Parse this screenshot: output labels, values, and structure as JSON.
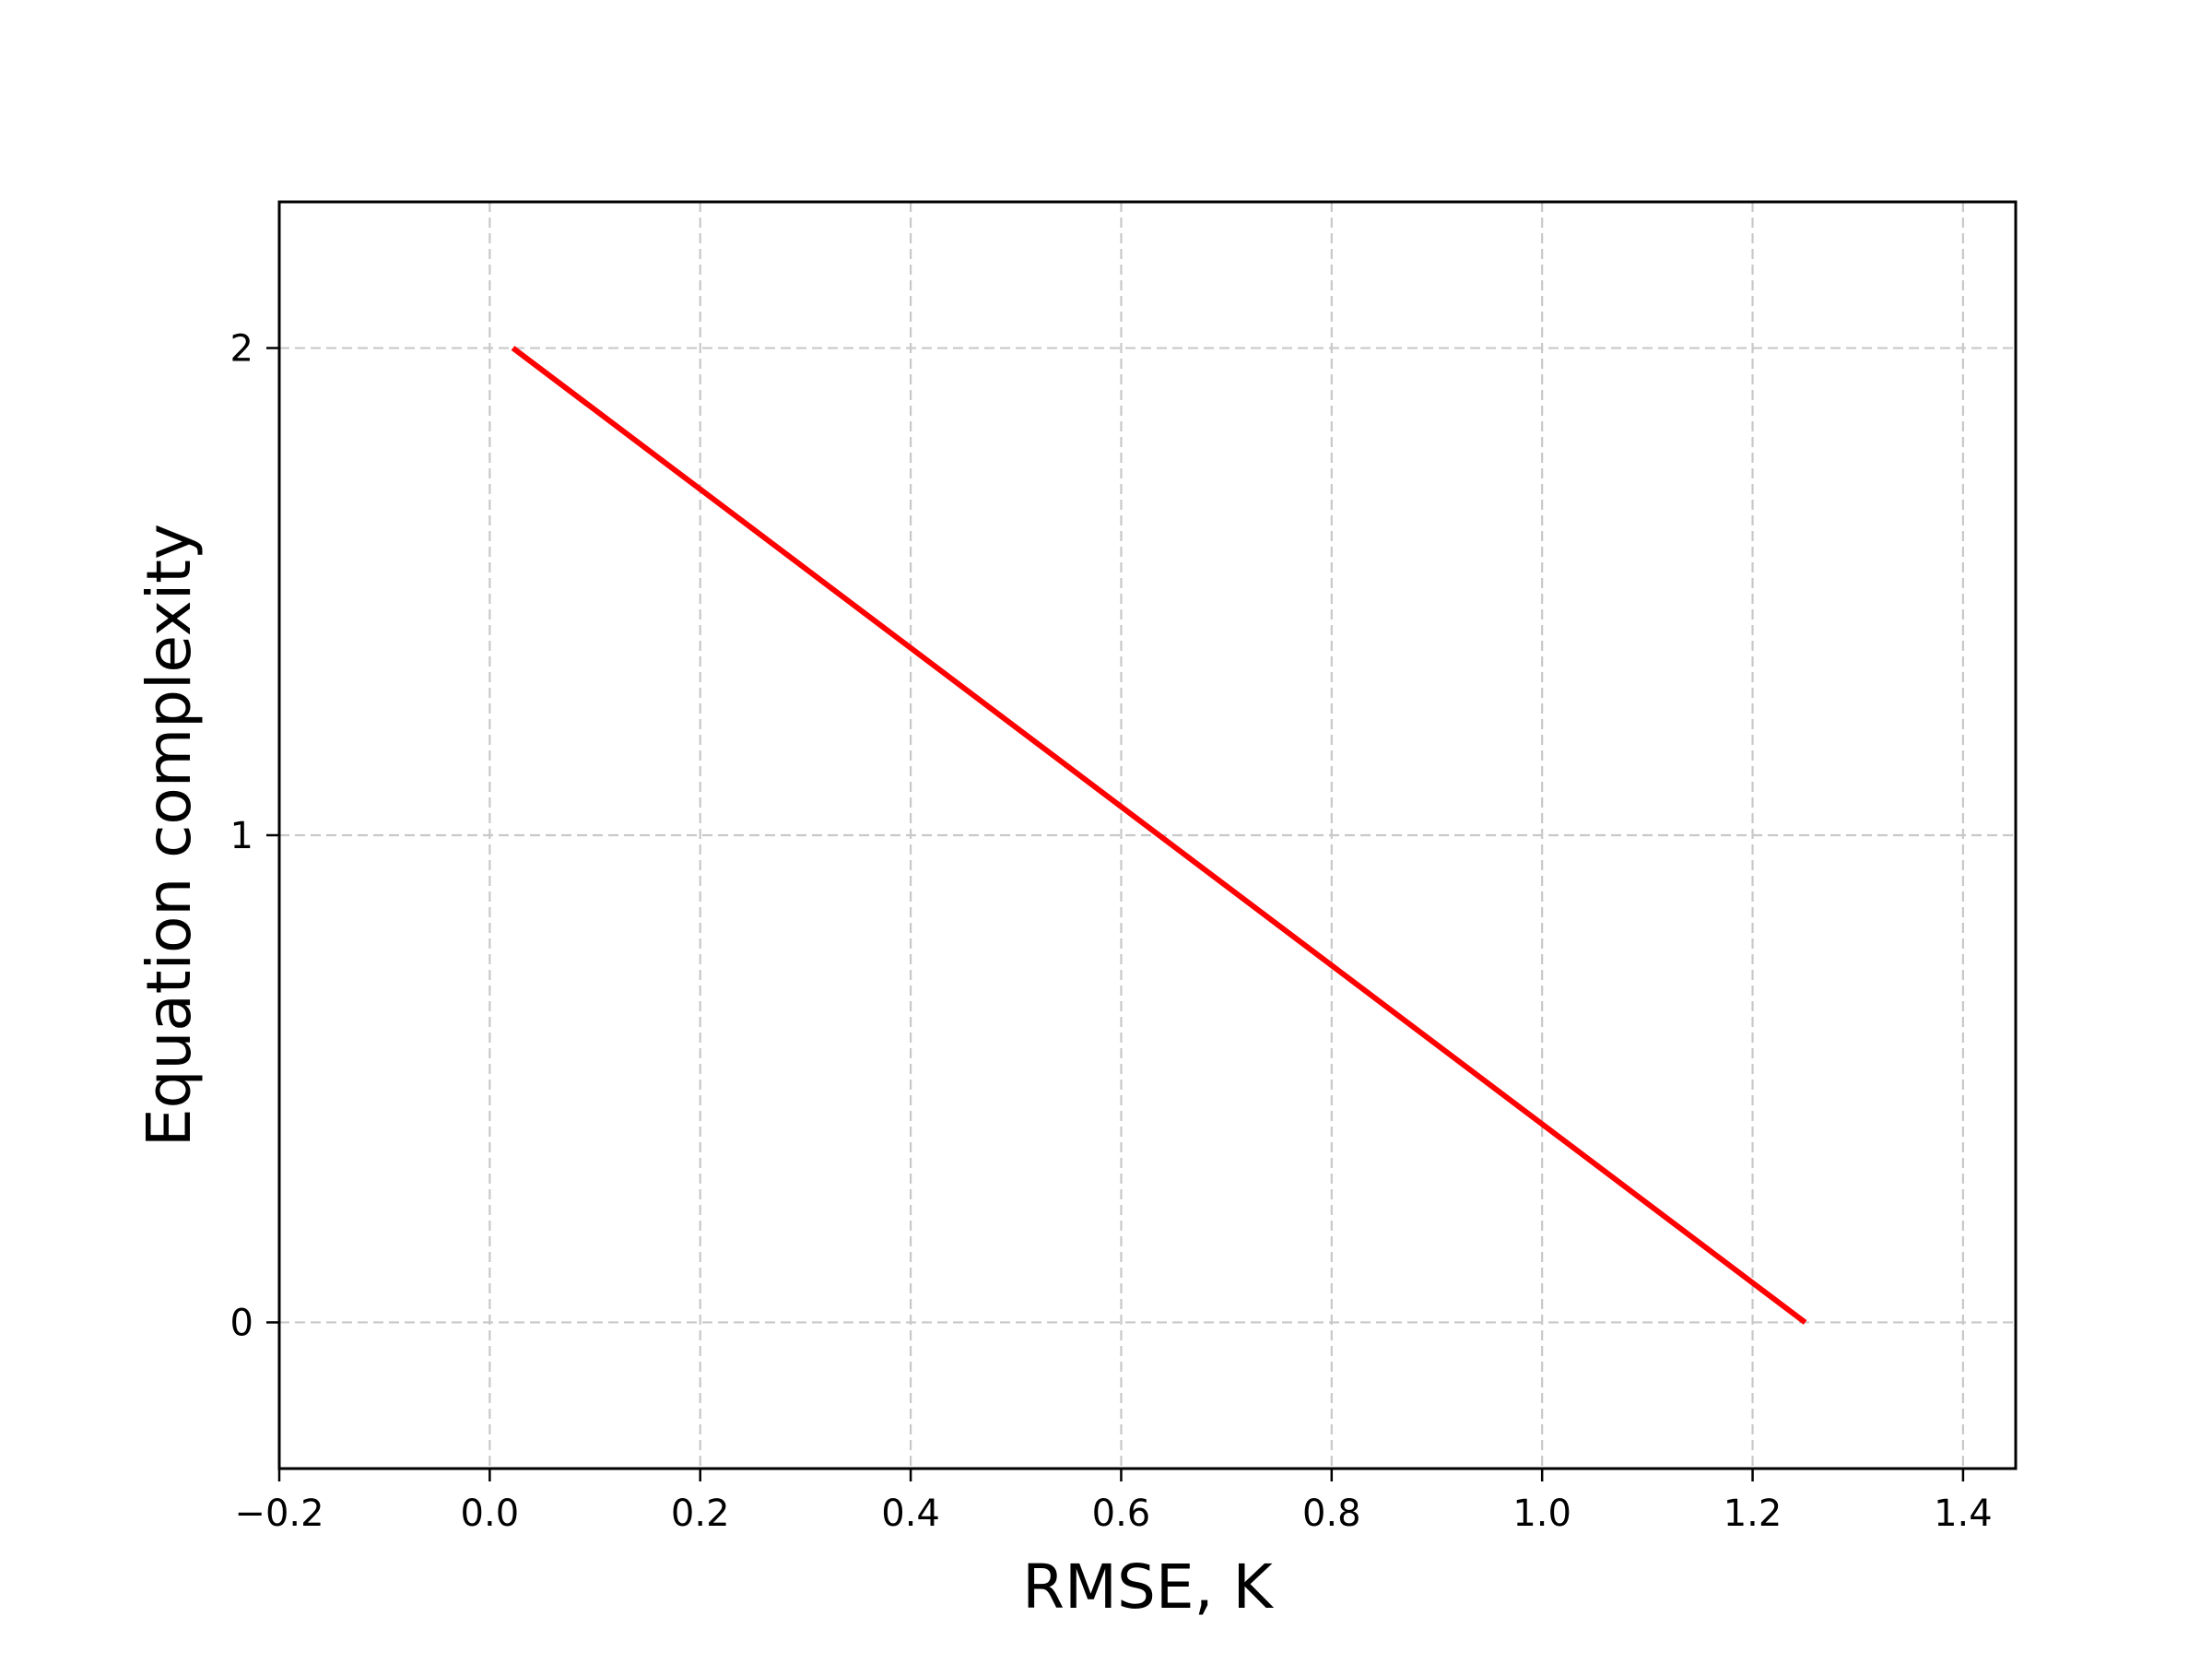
{
  "chart_data": {
    "type": "line",
    "title": "",
    "xlabel": "RMSE, K",
    "ylabel": "Equation complexity",
    "xlim": [
      -0.2,
      1.45
    ],
    "ylim": [
      -0.3,
      2.3
    ],
    "x_ticks": [
      -0.2,
      0.0,
      0.2,
      0.4,
      0.6,
      0.8,
      1.0,
      1.2,
      1.4
    ],
    "x_tick_labels": [
      "−0.2",
      "0.0",
      "0.2",
      "0.4",
      "0.6",
      "0.8",
      "1.0",
      "1.2",
      "1.4"
    ],
    "y_ticks": [
      0,
      1,
      2
    ],
    "y_tick_labels": [
      "0",
      "1",
      "2"
    ],
    "grid": true,
    "grid_style": "dashed",
    "series": [
      {
        "color": "#ff0000",
        "x": [
          0.022,
          1.25
        ],
        "y": [
          2,
          0
        ]
      }
    ]
  }
}
